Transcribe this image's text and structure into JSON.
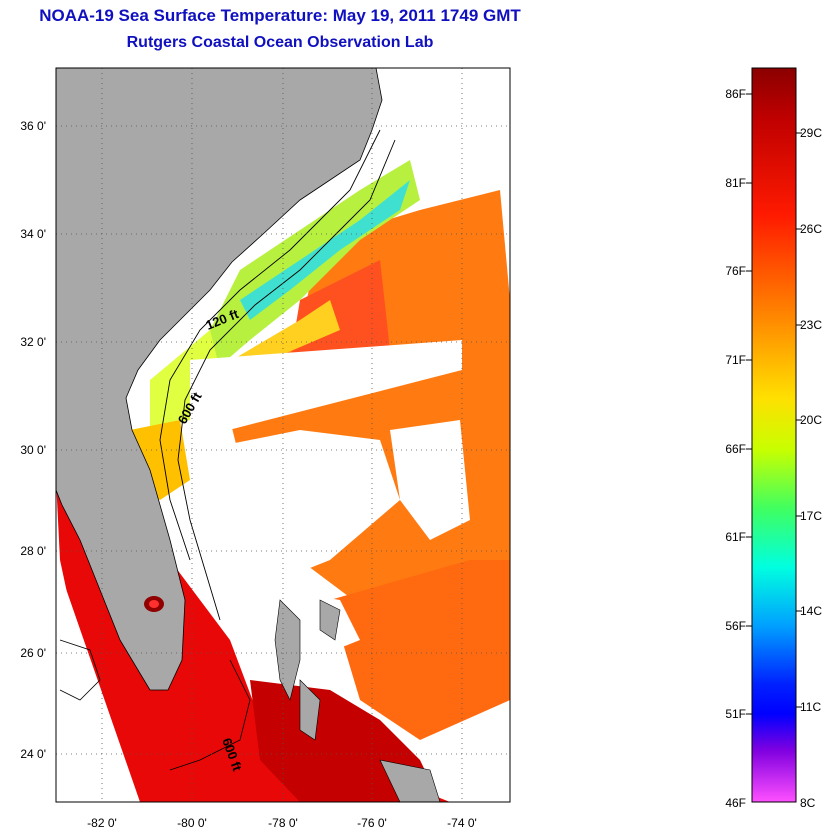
{
  "title_line1": "NOAA-19 Sea Surface Temperature:  May 19, 2011 1749 GMT",
  "title_line2": "Rutgers Coastal Ocean Observation Lab",
  "map": {
    "lat_labels": [
      "36 0'",
      "34 0'",
      "32 0'",
      "30 0'",
      "28 0'",
      "26 0'",
      "24 0'"
    ],
    "lon_labels": [
      "-82 0'",
      "-80 0'",
      "-78 0'",
      "-76 0'",
      "-74 0'"
    ],
    "contour_labels": [
      "120 ft",
      "600 ft",
      "600 ft"
    ]
  },
  "colorbar": {
    "fahrenheit_labels": [
      "86F",
      "81F",
      "76F",
      "71F",
      "66F",
      "61F",
      "56F",
      "51F",
      "46F"
    ],
    "celsius_labels": [
      "29C",
      "26C",
      "23C",
      "20C",
      "17C",
      "14C",
      "11C",
      "8C"
    ],
    "colors": [
      "#8b0000",
      "#ff0000",
      "#ff6a00",
      "#ffd000",
      "#ffff00",
      "#80ff00",
      "#00ff80",
      "#00e0ff",
      "#0060ff",
      "#0000ff",
      "#8000ff",
      "#ff40ff"
    ]
  }
}
